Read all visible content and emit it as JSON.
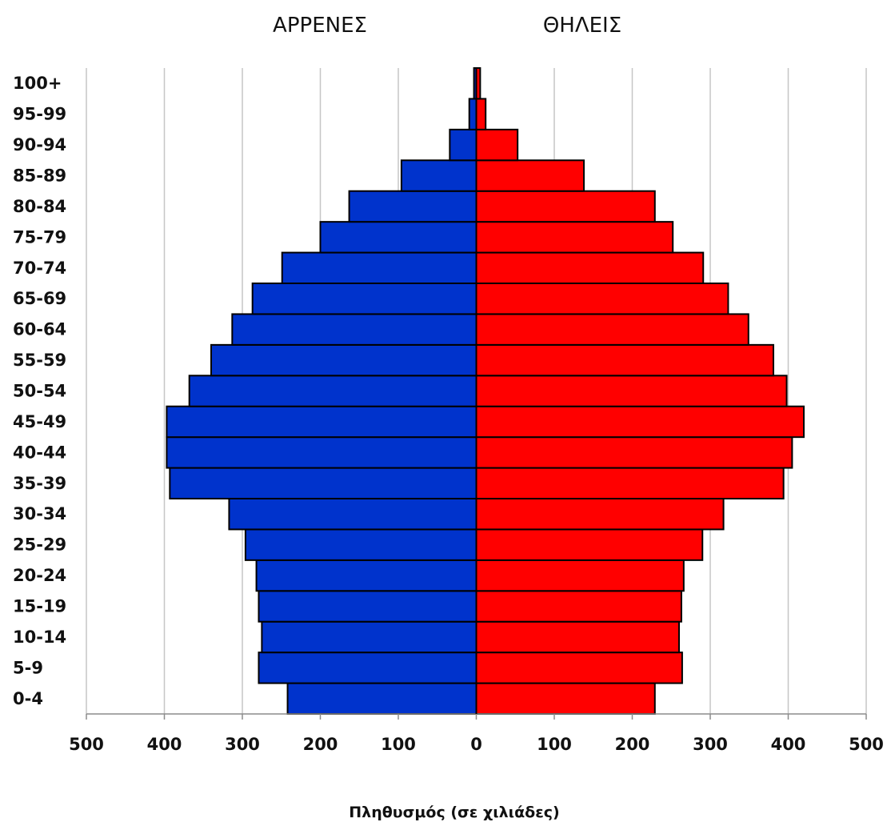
{
  "chart_data": {
    "type": "bar",
    "orientation": "horizontal",
    "subtype": "population-pyramid",
    "title": "",
    "left_header": "ΑΡΡΕΝΕΣ",
    "right_header": "ΘΗΛΕΙΣ",
    "xlabel": "Πληθυσμός (σε χιλιάδες)",
    "ylabel": "",
    "xlim": [
      -500,
      500
    ],
    "xticks": [
      -500,
      -400,
      -300,
      -200,
      -100,
      0,
      100,
      200,
      300,
      400,
      500
    ],
    "xtick_labels": [
      "500",
      "400",
      "300",
      "200",
      "100",
      "0",
      "100",
      "200",
      "300",
      "400",
      "500"
    ],
    "grid": true,
    "categories": [
      "0-4",
      "5-9",
      "10-14",
      "15-19",
      "20-24",
      "25-29",
      "30-34",
      "35-39",
      "40-44",
      "45-49",
      "50-54",
      "55-59",
      "60-64",
      "65-69",
      "70-74",
      "75-79",
      "80-84",
      "85-89",
      "90-94",
      "95-99",
      "100+"
    ],
    "series": [
      {
        "name": "ΑΡΡΕΝΕΣ",
        "color": "#0033cc",
        "side": "left",
        "values": [
          242,
          279,
          275,
          279,
          282,
          296,
          317,
          393,
          397,
          397,
          368,
          340,
          313,
          287,
          249,
          200,
          163,
          96,
          34,
          9,
          3
        ]
      },
      {
        "name": "ΘΗΛΕΙΣ",
        "color": "#ff0000",
        "side": "right",
        "values": [
          229,
          264,
          260,
          263,
          266,
          290,
          317,
          394,
          405,
          420,
          398,
          381,
          349,
          323,
          291,
          252,
          229,
          138,
          53,
          12,
          5
        ]
      }
    ]
  }
}
